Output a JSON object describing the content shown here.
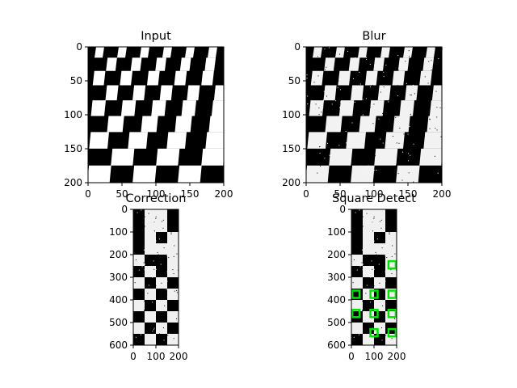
{
  "chart_data": [
    {
      "type": "image",
      "title": "Input",
      "content": "binary checkerboard in perspective (black and white squares)",
      "xlim": [
        0,
        200
      ],
      "ylim": [
        200,
        0
      ],
      "xticks": [
        0,
        50,
        100,
        150,
        200
      ],
      "yticks": [
        0,
        50,
        100,
        150,
        200
      ]
    },
    {
      "type": "image",
      "title": "Blur",
      "content": "noisy version of the input checkerboard",
      "xlim": [
        0,
        200
      ],
      "ylim": [
        200,
        0
      ],
      "xticks": [
        0,
        50,
        100,
        150,
        200
      ],
      "yticks": [
        0,
        50,
        100,
        150,
        200
      ]
    },
    {
      "type": "image",
      "title": "Correction",
      "content": "perspective-corrected checkerboard, tall and narrow",
      "xlim": [
        0,
        200
      ],
      "ylim": [
        600,
        0
      ],
      "xticks": [
        0,
        100,
        200
      ],
      "yticks": [
        0,
        100,
        200,
        300,
        400,
        500,
        600
      ]
    },
    {
      "type": "image",
      "title": "Square Detect",
      "content": "corrected checkerboard with detected squares outlined in green",
      "xlim": [
        0,
        200
      ],
      "ylim": [
        600,
        0
      ],
      "xticks": [
        0,
        100,
        200
      ],
      "yticks": [
        0,
        100,
        200,
        300,
        400,
        500,
        600
      ],
      "detections_color": "#00e600",
      "detections": [
        {
          "x": 180,
          "y": 245
        },
        {
          "x": 20,
          "y": 375
        },
        {
          "x": 100,
          "y": 375
        },
        {
          "x": 180,
          "y": 375
        },
        {
          "x": 20,
          "y": 460
        },
        {
          "x": 100,
          "y": 460
        },
        {
          "x": 180,
          "y": 460
        },
        {
          "x": 100,
          "y": 545
        },
        {
          "x": 180,
          "y": 545
        }
      ]
    }
  ]
}
